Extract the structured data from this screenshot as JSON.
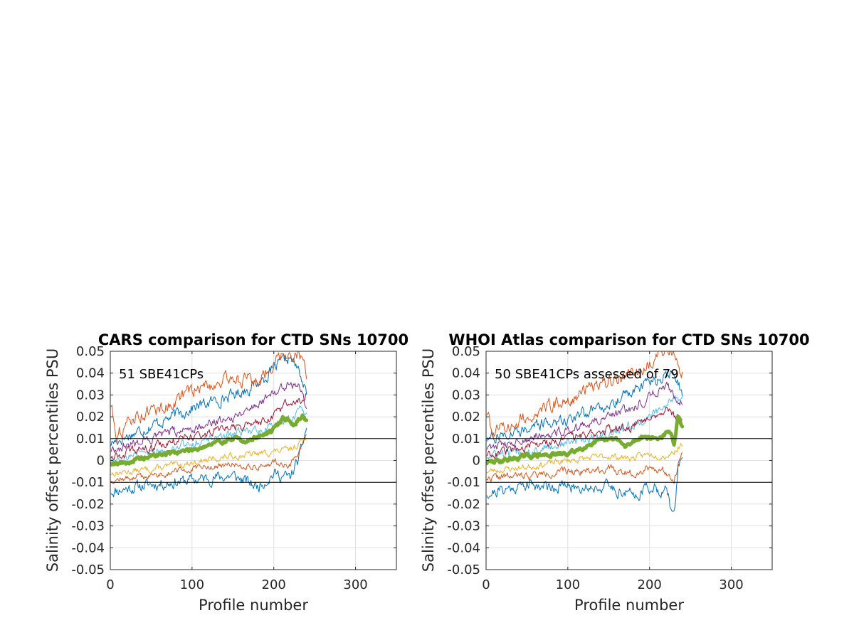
{
  "colors": {
    "blue": "#0072bd",
    "orange": "#d95319",
    "yellow": "#edb120",
    "purple": "#7e2f8e",
    "green": "#77ac30",
    "cyan": "#4dbeee",
    "darkred": "#a2142f",
    "ref_line": "#000000"
  },
  "chart_data": [
    {
      "type": "line",
      "title": "CARS comparison for CTD SNs 10700",
      "xlabel": "Profile number",
      "ylabel": "Salinity offset percentiles PSU",
      "annotation": "51 SBE41CPs",
      "xlim": [
        0,
        350
      ],
      "ylim": [
        -0.05,
        0.05
      ],
      "xticks": [
        0,
        100,
        200,
        300
      ],
      "xtick_labels": [
        "0",
        "100",
        "200",
        "300"
      ],
      "yticks": [
        0.05,
        0.04,
        0.03,
        0.02,
        0.01,
        0,
        -0.01,
        -0.02,
        -0.03,
        -0.04,
        -0.05
      ],
      "ytick_labels": [
        "0.05",
        "0.04",
        "0.03",
        "0.02",
        "0.01",
        "0",
        "-0.01",
        "-0.02",
        "-0.03",
        "-0.04",
        "-0.05"
      ],
      "grid": true,
      "reference_lines": [
        0.01,
        -0.01
      ],
      "series": [
        {
          "color": "blue",
          "width": 1,
          "seed": 11,
          "noise": 0.0022,
          "points": [
            [
              1,
              -0.014
            ],
            [
              50,
              -0.011
            ],
            [
              100,
              -0.009
            ],
            [
              150,
              -0.007
            ],
            [
              180,
              -0.012
            ],
            [
              200,
              -0.006
            ],
            [
              220,
              -0.008
            ],
            [
              232,
              0.002
            ],
            [
              240,
              0.015
            ]
          ]
        },
        {
          "color": "orange",
          "width": 1,
          "seed": 12,
          "noise": 0.0012,
          "points": [
            [
              1,
              -0.009
            ],
            [
              50,
              -0.007
            ],
            [
              100,
              -0.004
            ],
            [
              150,
              -0.002
            ],
            [
              180,
              -0.003
            ],
            [
              200,
              -0.001
            ],
            [
              220,
              -0.002
            ],
            [
              232,
              0.004
            ],
            [
              240,
              0.012
            ]
          ]
        },
        {
          "color": "yellow",
          "width": 1,
          "seed": 13,
          "noise": 0.0012,
          "points": [
            [
              1,
              -0.006
            ],
            [
              50,
              -0.004
            ],
            [
              100,
              -0.001
            ],
            [
              150,
              0.002
            ],
            [
              180,
              0.003
            ],
            [
              200,
              0.004
            ],
            [
              220,
              0.005
            ],
            [
              232,
              0.008
            ],
            [
              240,
              0.012
            ]
          ]
        },
        {
          "color": "cyan",
          "width": 1,
          "seed": 14,
          "noise": 0.0018,
          "points": [
            [
              1,
              0.001
            ],
            [
              50,
              0.004
            ],
            [
              100,
              0.008
            ],
            [
              150,
              0.012
            ],
            [
              180,
              0.014
            ],
            [
              200,
              0.016
            ],
            [
              220,
              0.019
            ],
            [
              232,
              0.022
            ],
            [
              240,
              0.02
            ]
          ]
        },
        {
          "color": "darkred",
          "width": 1,
          "seed": 15,
          "noise": 0.0016,
          "points": [
            [
              1,
              0.002
            ],
            [
              50,
              0.006
            ],
            [
              100,
              0.011
            ],
            [
              150,
              0.015
            ],
            [
              180,
              0.017
            ],
            [
              200,
              0.021
            ],
            [
              220,
              0.027
            ],
            [
              232,
              0.028
            ],
            [
              240,
              0.03
            ]
          ]
        },
        {
          "color": "purple",
          "width": 1,
          "seed": 16,
          "noise": 0.0018,
          "points": [
            [
              1,
              0.005
            ],
            [
              50,
              0.01
            ],
            [
              100,
              0.015
            ],
            [
              150,
              0.02
            ],
            [
              180,
              0.026
            ],
            [
              200,
              0.031
            ],
            [
              220,
              0.036
            ],
            [
              232,
              0.034
            ],
            [
              240,
              0.025
            ]
          ]
        },
        {
          "color": "blue",
          "width": 1,
          "seed": 17,
          "noise": 0.0022,
          "points": [
            [
              1,
              0.008
            ],
            [
              50,
              0.016
            ],
            [
              100,
              0.024
            ],
            [
              150,
              0.03
            ],
            [
              180,
              0.035
            ],
            [
              200,
              0.042
            ],
            [
              220,
              0.047
            ],
            [
              232,
              0.04
            ],
            [
              240,
              0.03
            ]
          ]
        },
        {
          "color": "orange",
          "width": 1,
          "seed": 18,
          "noise": 0.0025,
          "points": [
            [
              1,
              0.026
            ],
            [
              8,
              0.012
            ],
            [
              30,
              0.02
            ],
            [
              70,
              0.025
            ],
            [
              100,
              0.032
            ],
            [
              150,
              0.038
            ],
            [
              180,
              0.036
            ],
            [
              200,
              0.045
            ],
            [
              215,
              0.05
            ],
            [
              232,
              0.048
            ],
            [
              240,
              0.04
            ]
          ]
        },
        {
          "color": "green",
          "width": 5,
          "seed": 19,
          "noise": 0.0008,
          "points": [
            [
              1,
              -0.001
            ],
            [
              20,
              -0.001
            ],
            [
              50,
              0.002
            ],
            [
              100,
              0.005
            ],
            [
              150,
              0.01
            ],
            [
              170,
              0.009
            ],
            [
              200,
              0.014
            ],
            [
              212,
              0.02
            ],
            [
              225,
              0.016
            ],
            [
              235,
              0.021
            ],
            [
              240,
              0.018
            ]
          ]
        }
      ]
    },
    {
      "type": "line",
      "title": "WHOI Atlas comparison for CTD SNs 10700",
      "xlabel": "Profile number",
      "ylabel": "Salinity offset percentiles PSU",
      "annotation": "50 SBE41CPs assessed of 79",
      "xlim": [
        0,
        350
      ],
      "ylim": [
        -0.05,
        0.05
      ],
      "xticks": [
        0,
        100,
        200,
        300
      ],
      "xtick_labels": [
        "0",
        "100",
        "200",
        "300"
      ],
      "yticks": [
        0.05,
        0.04,
        0.03,
        0.02,
        0.01,
        0,
        -0.01,
        -0.02,
        -0.03,
        -0.04,
        -0.05
      ],
      "ytick_labels": [
        "0.05",
        "0.04",
        "0.03",
        "0.02",
        "0.01",
        "0",
        "-0.01",
        "-0.02",
        "-0.03",
        "-0.04",
        "-0.05"
      ],
      "grid": true,
      "reference_lines": [
        0.01,
        -0.01
      ],
      "series": [
        {
          "color": "blue",
          "width": 1,
          "seed": 21,
          "noise": 0.0022,
          "points": [
            [
              1,
              -0.015
            ],
            [
              50,
              -0.011
            ],
            [
              100,
              -0.012
            ],
            [
              150,
              -0.012
            ],
            [
              180,
              -0.016
            ],
            [
              200,
              -0.012
            ],
            [
              220,
              -0.014
            ],
            [
              230,
              -0.026
            ],
            [
              235,
              -0.002
            ],
            [
              240,
              0.002
            ]
          ]
        },
        {
          "color": "orange",
          "width": 1,
          "seed": 22,
          "noise": 0.0014,
          "points": [
            [
              1,
              -0.008
            ],
            [
              50,
              -0.007
            ],
            [
              100,
              -0.005
            ],
            [
              150,
              -0.004
            ],
            [
              180,
              -0.006
            ],
            [
              200,
              -0.003
            ],
            [
              220,
              -0.005
            ],
            [
              230,
              -0.008
            ],
            [
              240,
              0.004
            ]
          ]
        },
        {
          "color": "yellow",
          "width": 1,
          "seed": 23,
          "noise": 0.0012,
          "points": [
            [
              1,
              -0.005
            ],
            [
              50,
              -0.003
            ],
            [
              100,
              0
            ],
            [
              150,
              0.002
            ],
            [
              180,
              0.001
            ],
            [
              200,
              0.003
            ],
            [
              220,
              0.002
            ],
            [
              230,
              0.004
            ],
            [
              240,
              0.008
            ]
          ]
        },
        {
          "color": "cyan",
          "width": 1,
          "seed": 24,
          "noise": 0.0018,
          "points": [
            [
              1,
              0.002
            ],
            [
              50,
              0.004
            ],
            [
              100,
              0.008
            ],
            [
              150,
              0.012
            ],
            [
              180,
              0.016
            ],
            [
              200,
              0.02
            ],
            [
              220,
              0.024
            ],
            [
              230,
              0.03
            ],
            [
              240,
              0.028
            ]
          ]
        },
        {
          "color": "darkred",
          "width": 1,
          "seed": 25,
          "noise": 0.0016,
          "points": [
            [
              1,
              0.003
            ],
            [
              50,
              0.006
            ],
            [
              100,
              0.01
            ],
            [
              150,
              0.014
            ],
            [
              180,
              0.016
            ],
            [
              200,
              0.02
            ],
            [
              220,
              0.024
            ],
            [
              230,
              0.02
            ],
            [
              240,
              0.018
            ]
          ]
        },
        {
          "color": "purple",
          "width": 1,
          "seed": 26,
          "noise": 0.0018,
          "points": [
            [
              1,
              0.006
            ],
            [
              50,
              0.01
            ],
            [
              100,
              0.014
            ],
            [
              150,
              0.02
            ],
            [
              180,
              0.024
            ],
            [
              200,
              0.029
            ],
            [
              220,
              0.034
            ],
            [
              230,
              0.03
            ],
            [
              240,
              0.026
            ]
          ]
        },
        {
          "color": "blue",
          "width": 1,
          "seed": 27,
          "noise": 0.0022,
          "points": [
            [
              1,
              0.01
            ],
            [
              50,
              0.015
            ],
            [
              100,
              0.019
            ],
            [
              150,
              0.026
            ],
            [
              180,
              0.032
            ],
            [
              200,
              0.036
            ],
            [
              220,
              0.038
            ],
            [
              230,
              0.04
            ],
            [
              240,
              0.03
            ]
          ]
        },
        {
          "color": "orange",
          "width": 1,
          "seed": 28,
          "noise": 0.0025,
          "points": [
            [
              1,
              0.022
            ],
            [
              8,
              0.012
            ],
            [
              50,
              0.02
            ],
            [
              100,
              0.028
            ],
            [
              150,
              0.036
            ],
            [
              180,
              0.04
            ],
            [
              200,
              0.045
            ],
            [
              215,
              0.05
            ],
            [
              230,
              0.05
            ],
            [
              240,
              0.04
            ]
          ]
        },
        {
          "color": "green",
          "width": 5,
          "seed": 29,
          "noise": 0.0008,
          "points": [
            [
              1,
              -0.001
            ],
            [
              20,
              0
            ],
            [
              50,
              0.002
            ],
            [
              100,
              0.003
            ],
            [
              130,
              0.008
            ],
            [
              160,
              0.01
            ],
            [
              170,
              0.006
            ],
            [
              190,
              0.011
            ],
            [
              210,
              0.01
            ],
            [
              225,
              0.013
            ],
            [
              230,
              0.008
            ],
            [
              235,
              0.02
            ],
            [
              240,
              0.015
            ]
          ]
        }
      ]
    }
  ]
}
